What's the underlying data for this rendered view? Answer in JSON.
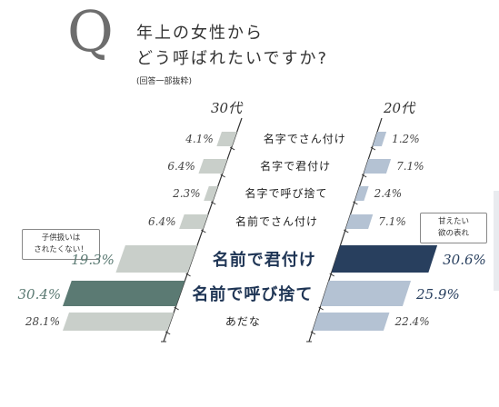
{
  "question": {
    "letter": "Q",
    "line1": "年上の女性から",
    "line2": "どう呼ばれたいですか?",
    "note": "(回答一部抜粋)"
  },
  "callouts": {
    "left": [
      "子供扱いは",
      "されたくない！"
    ],
    "right": [
      "甘えたい",
      "欲の表れ"
    ]
  },
  "colors": {
    "group30_default": "#c9cfca",
    "group30_highlight": "#5b7a73",
    "group20_default": "#b4c2d3",
    "group20_highlight": "#283f5e",
    "label_default": "#222222",
    "label_highlight": "#1f3555",
    "pct_30": "#5b7a73",
    "pct_20": "#283f5e",
    "axis": "#333333"
  },
  "chart_data": {
    "type": "bar",
    "orientation": "horizontal-butterfly",
    "categories": [
      "名字でさん付け",
      "名字で君付け",
      "名字で呼び捨て",
      "名前でさん付け",
      "名前で君付け",
      "名前で呼び捨て",
      "あだな"
    ],
    "series": [
      {
        "name": "30代",
        "values": [
          4.1,
          6.4,
          2.3,
          6.4,
          19.3,
          30.4,
          28.1
        ],
        "labels": [
          "4.1%",
          "6.4%",
          "2.3%",
          "6.4%",
          "19.3%",
          "30.4%",
          "28.1%"
        ]
      },
      {
        "name": "20代",
        "values": [
          1.2,
          7.1,
          2.4,
          7.1,
          30.6,
          25.9,
          22.4
        ],
        "labels": [
          "1.2%",
          "7.1%",
          "2.4%",
          "7.1%",
          "30.6%",
          "25.9%",
          "22.4%"
        ]
      }
    ],
    "highlighted_categories": [
      4,
      5
    ],
    "highlight_30_index": 5,
    "highlight_20_index": 4,
    "title": "",
    "xlabel": "",
    "ylabel": "",
    "xlim": [
      0,
      31
    ],
    "grid": false,
    "legend": "none"
  }
}
